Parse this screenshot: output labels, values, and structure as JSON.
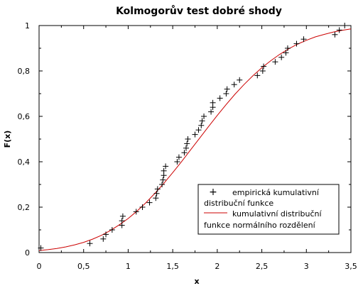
{
  "chart_data": {
    "type": "line",
    "title": "Kolmogorův test dobré shody",
    "xlabel": "x",
    "ylabel": "F(x)",
    "xlim": [
      0,
      3.5
    ],
    "ylim": [
      0,
      1
    ],
    "x_ticks": [
      "0",
      "0,5",
      "1",
      "1,5",
      "2",
      "2,5",
      "3",
      "3,5"
    ],
    "y_ticks": [
      "0",
      "0,2",
      "0,4",
      "0,6",
      "0,8",
      "1"
    ],
    "grid": false,
    "legend_position": "bottom-right",
    "series": [
      {
        "name": "empirická kumulativní distribuční funkce",
        "kind": "scatter",
        "marker": "plus",
        "color": "#000000",
        "points": [
          [
            0.02,
            0.02
          ],
          [
            0.57,
            0.04
          ],
          [
            0.72,
            0.06
          ],
          [
            0.75,
            0.08
          ],
          [
            0.82,
            0.1
          ],
          [
            0.93,
            0.12
          ],
          [
            0.93,
            0.14
          ],
          [
            0.94,
            0.16
          ],
          [
            1.09,
            0.18
          ],
          [
            1.16,
            0.2
          ],
          [
            1.24,
            0.22
          ],
          [
            1.31,
            0.24
          ],
          [
            1.32,
            0.26
          ],
          [
            1.33,
            0.28
          ],
          [
            1.38,
            0.3
          ],
          [
            1.39,
            0.32
          ],
          [
            1.4,
            0.34
          ],
          [
            1.4,
            0.36
          ],
          [
            1.42,
            0.38
          ],
          [
            1.55,
            0.4
          ],
          [
            1.57,
            0.42
          ],
          [
            1.63,
            0.44
          ],
          [
            1.65,
            0.46
          ],
          [
            1.66,
            0.48
          ],
          [
            1.67,
            0.5
          ],
          [
            1.75,
            0.52
          ],
          [
            1.79,
            0.54
          ],
          [
            1.82,
            0.56
          ],
          [
            1.83,
            0.58
          ],
          [
            1.85,
            0.6
          ],
          [
            1.93,
            0.62
          ],
          [
            1.95,
            0.64
          ],
          [
            1.95,
            0.66
          ],
          [
            2.03,
            0.68
          ],
          [
            2.1,
            0.7
          ],
          [
            2.11,
            0.72
          ],
          [
            2.19,
            0.74
          ],
          [
            2.25,
            0.76
          ],
          [
            2.45,
            0.78
          ],
          [
            2.51,
            0.8
          ],
          [
            2.52,
            0.82
          ],
          [
            2.65,
            0.84
          ],
          [
            2.72,
            0.86
          ],
          [
            2.77,
            0.88
          ],
          [
            2.79,
            0.9
          ],
          [
            2.89,
            0.92
          ],
          [
            2.97,
            0.94
          ],
          [
            3.32,
            0.96
          ],
          [
            3.37,
            0.98
          ],
          [
            3.43,
            1.0
          ]
        ]
      },
      {
        "name": "kumulativní distribuční funkce normálního rozdělení",
        "kind": "line",
        "color": "#cc0000",
        "x": [
          0,
          0.1,
          0.2,
          0.3,
          0.4,
          0.5,
          0.6,
          0.7,
          0.8,
          0.9,
          1.0,
          1.1,
          1.2,
          1.3,
          1.4,
          1.5,
          1.6,
          1.7,
          1.8,
          1.9,
          2.0,
          2.1,
          2.2,
          2.3,
          2.4,
          2.5,
          2.6,
          2.7,
          2.8,
          2.9,
          3.0,
          3.1,
          3.2,
          3.3,
          3.4,
          3.5
        ],
        "y": [
          0.009,
          0.013,
          0.018,
          0.025,
          0.034,
          0.045,
          0.059,
          0.076,
          0.097,
          0.122,
          0.15,
          0.183,
          0.22,
          0.261,
          0.305,
          0.352,
          0.401,
          0.452,
          0.503,
          0.554,
          0.604,
          0.652,
          0.698,
          0.74,
          0.779,
          0.814,
          0.845,
          0.873,
          0.897,
          0.918,
          0.935,
          0.95,
          0.961,
          0.971,
          0.979,
          0.985
        ]
      }
    ],
    "legend": {
      "entries": [
        {
          "symbol": "+",
          "text_lines": [
            "empirická kumulativní",
            "distribuční funkce"
          ]
        },
        {
          "symbol": "line",
          "text_lines": [
            "kumulativní distribuční",
            "funkce normálního rozdělení"
          ]
        }
      ]
    }
  }
}
